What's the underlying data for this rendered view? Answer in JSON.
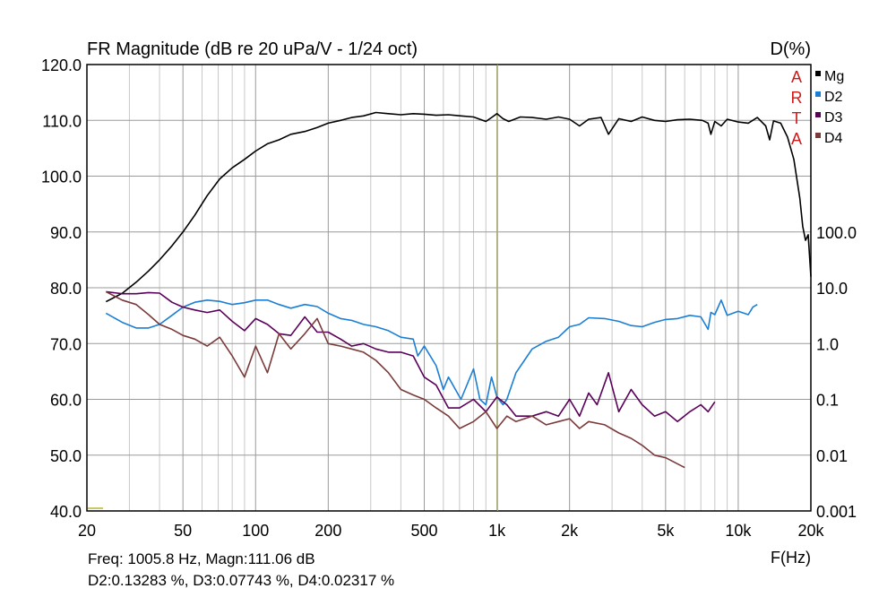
{
  "chart_data": {
    "type": "line",
    "title": "FR Magnitude (dB re 20 uPa/V - 1/24 oct)",
    "right_axis_title": "D(%)",
    "xlabel": "F(Hz)",
    "x_scale": "log",
    "xlim": [
      20,
      20000
    ],
    "ylim": [
      40,
      120
    ],
    "y2_scale": "log",
    "y2lim": [
      0.001,
      100
    ],
    "grid": true,
    "legend_placement": "top-right",
    "x_ticks": [
      {
        "value": 20,
        "label": "20"
      },
      {
        "value": 50,
        "label": "50"
      },
      {
        "value": 100,
        "label": "100"
      },
      {
        "value": 200,
        "label": "200"
      },
      {
        "value": 500,
        "label": "500"
      },
      {
        "value": 1000,
        "label": "1k"
      },
      {
        "value": 2000,
        "label": "2k"
      },
      {
        "value": 5000,
        "label": "5k"
      },
      {
        "value": 10000,
        "label": "10k"
      },
      {
        "value": 20000,
        "label": "20k"
      }
    ],
    "y_ticks": [
      {
        "value": 40,
        "label": "40.0"
      },
      {
        "value": 50,
        "label": "50.0"
      },
      {
        "value": 60,
        "label": "60.0"
      },
      {
        "value": 70,
        "label": "70.0"
      },
      {
        "value": 80,
        "label": "80.0"
      },
      {
        "value": 90,
        "label": "90.0"
      },
      {
        "value": 100,
        "label": "100.0"
      },
      {
        "value": 110,
        "label": "110.0"
      },
      {
        "value": 120,
        "label": "120.0"
      }
    ],
    "y2_ticks": [
      {
        "value": 0.001,
        "label": "0.001"
      },
      {
        "value": 0.01,
        "label": "0.01"
      },
      {
        "value": 0.1,
        "label": "0.1"
      },
      {
        "value": 1,
        "label": "1.0"
      },
      {
        "value": 10,
        "label": "10.0"
      },
      {
        "value": 100,
        "label": "100.0"
      }
    ],
    "marker_frequency": 1005.8,
    "series": [
      {
        "name": "Mg",
        "color": "#000000",
        "axis": "dB",
        "x": [
          24,
          28,
          32,
          36,
          40,
          45,
          50,
          56,
          63,
          71,
          80,
          90,
          100,
          112,
          125,
          140,
          160,
          180,
          200,
          225,
          250,
          280,
          315,
          355,
          400,
          450,
          500,
          560,
          630,
          710,
          800,
          900,
          950,
          1000,
          1060,
          1120,
          1250,
          1400,
          1600,
          1800,
          2000,
          2200,
          2400,
          2700,
          2900,
          3200,
          3600,
          4000,
          4500,
          5000,
          5600,
          6300,
          7100,
          7500,
          7700,
          8000,
          8500,
          9000,
          10000,
          11000,
          12000,
          13000,
          13500,
          14000,
          15000,
          16000,
          17000,
          18000,
          18500,
          19000,
          19500,
          20000
        ],
        "y": [
          77.5,
          79,
          81,
          83,
          85,
          87.5,
          90,
          93,
          96.5,
          99.5,
          101.5,
          103,
          104.5,
          105.8,
          106.5,
          107.5,
          108,
          108.7,
          109.5,
          110,
          110.5,
          110.8,
          111.4,
          111.2,
          111,
          111.2,
          111.1,
          110.9,
          111,
          110.8,
          110.6,
          109.8,
          110.5,
          111.2,
          110.3,
          109.8,
          110.6,
          110.5,
          110.2,
          110.6,
          110.2,
          109,
          110.2,
          110.5,
          107.5,
          110.3,
          109.8,
          110.6,
          110.0,
          109.8,
          110.1,
          110.2,
          110.0,
          109.5,
          107.5,
          109.8,
          109.0,
          110.2,
          109.7,
          109.5,
          110.5,
          109.0,
          106.5,
          109.9,
          109.5,
          107,
          103,
          96,
          91,
          88.5,
          89.5,
          82
        ]
      },
      {
        "name": "D2",
        "color": "#1a7fd4",
        "axis": "pct",
        "x": [
          24,
          28,
          32,
          36,
          40,
          45,
          50,
          56,
          63,
          71,
          80,
          90,
          100,
          112,
          125,
          140,
          160,
          180,
          200,
          225,
          250,
          280,
          315,
          355,
          400,
          450,
          470,
          500,
          560,
          600,
          630,
          710,
          800,
          850,
          900,
          950,
          1000,
          1060,
          1100,
          1200,
          1300,
          1400,
          1600,
          1800,
          2000,
          2200,
          2400,
          2800,
          3200,
          3600,
          4000,
          4500,
          5000,
          5600,
          6300,
          7000,
          7500,
          7700,
          8000,
          8500,
          9000,
          10000,
          11000,
          11500,
          12000
        ],
        "x_end": 12000,
        "y": [
          3.5,
          2.4,
          1.9,
          1.9,
          2.2,
          3.2,
          4.5,
          5.5,
          6.0,
          5.7,
          5.0,
          5.4,
          6.0,
          6.0,
          5.0,
          4.3,
          5.0,
          4.6,
          3.5,
          2.8,
          2.6,
          2.2,
          2.0,
          1.7,
          1.3,
          1.2,
          0.6,
          0.9,
          0.4,
          0.15,
          0.25,
          0.1,
          0.35,
          0.1,
          0.08,
          0.25,
          0.11,
          0.08,
          0.1,
          0.3,
          0.5,
          0.8,
          1.1,
          1.3,
          2.0,
          2.2,
          2.9,
          2.8,
          2.5,
          2.1,
          2.0,
          2.4,
          2.7,
          2.8,
          3.2,
          3.0,
          1.8,
          3.6,
          3.3,
          6.0,
          3.2,
          3.8,
          3.3,
          4.5,
          5.0
        ]
      },
      {
        "name": "D3",
        "color": "#5a005a",
        "axis": "pct",
        "x": [
          24,
          28,
          32,
          36,
          40,
          45,
          50,
          56,
          63,
          71,
          80,
          90,
          100,
          112,
          125,
          140,
          160,
          180,
          200,
          225,
          250,
          280,
          315,
          355,
          400,
          450,
          500,
          560,
          630,
          700,
          800,
          900,
          1000,
          1100,
          1200,
          1400,
          1600,
          1800,
          2000,
          2200,
          2400,
          2600,
          2900,
          3200,
          3600,
          4000,
          4500,
          5000,
          5600,
          6300,
          7000,
          7500,
          8000
        ],
        "y": [
          8.5,
          7.8,
          7.8,
          8.2,
          8.0,
          5.5,
          4.5,
          4.0,
          3.6,
          4.0,
          2.5,
          1.7,
          2.8,
          2.2,
          1.5,
          1.4,
          3.0,
          1.6,
          1.6,
          1.2,
          0.9,
          1.0,
          0.8,
          0.7,
          0.7,
          0.6,
          0.25,
          0.18,
          0.07,
          0.07,
          0.1,
          0.06,
          0.11,
          0.08,
          0.05,
          0.05,
          0.06,
          0.05,
          0.1,
          0.05,
          0.13,
          0.08,
          0.3,
          0.06,
          0.15,
          0.08,
          0.05,
          0.06,
          0.04,
          0.06,
          0.08,
          0.06,
          0.09
        ]
      },
      {
        "name": "D4",
        "color": "#7a3a3a",
        "axis": "pct",
        "x": [
          24,
          28,
          32,
          36,
          40,
          45,
          50,
          56,
          63,
          71,
          80,
          90,
          100,
          112,
          125,
          140,
          160,
          180,
          200,
          225,
          250,
          280,
          315,
          355,
          400,
          450,
          500,
          560,
          630,
          700,
          800,
          900,
          1000,
          1100,
          1200,
          1400,
          1600,
          1800,
          2000,
          2200,
          2400,
          2800,
          3200,
          3600,
          4000,
          4500,
          5000,
          5600,
          6000
        ],
        "y": [
          8.5,
          6.0,
          5.0,
          3.3,
          2.2,
          1.8,
          1.4,
          1.2,
          0.9,
          1.3,
          0.6,
          0.25,
          0.9,
          0.3,
          1.5,
          0.8,
          1.5,
          2.8,
          1.0,
          0.9,
          0.8,
          0.7,
          0.5,
          0.3,
          0.15,
          0.12,
          0.1,
          0.07,
          0.05,
          0.03,
          0.04,
          0.06,
          0.03,
          0.05,
          0.04,
          0.05,
          0.035,
          0.04,
          0.045,
          0.03,
          0.04,
          0.035,
          0.025,
          0.02,
          0.015,
          0.01,
          0.009,
          0.007,
          0.006
        ]
      }
    ]
  },
  "artan_label": [
    "A",
    "R",
    "T",
    "A"
  ],
  "readout": {
    "line1": "Freq: 1005.8 Hz, Magn:111.06 dB",
    "line2": "D2:0.13283 %, D3:0.07743 %, D4:0.02317 %"
  }
}
